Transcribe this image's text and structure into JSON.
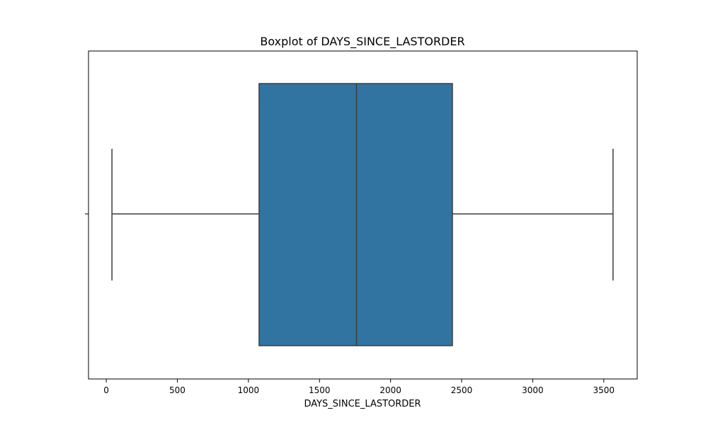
{
  "chart_data": {
    "type": "boxplot",
    "title": "Boxplot of DAYS_SINCE_LASTORDER",
    "xlabel": "DAYS_SINCE_LASTORDER",
    "ylabel": "",
    "orientation": "horizontal",
    "xlim": [
      -125,
      3735
    ],
    "xticks": [
      0,
      500,
      1000,
      1500,
      2000,
      2500,
      3000,
      3500
    ],
    "grid": false,
    "box_color": "#3274a1",
    "line_color": "#3d3d3d",
    "box": {
      "whisker_low": 40,
      "q1": 1075,
      "median": 1760,
      "q3": 2435,
      "whisker_high": 3565
    }
  }
}
